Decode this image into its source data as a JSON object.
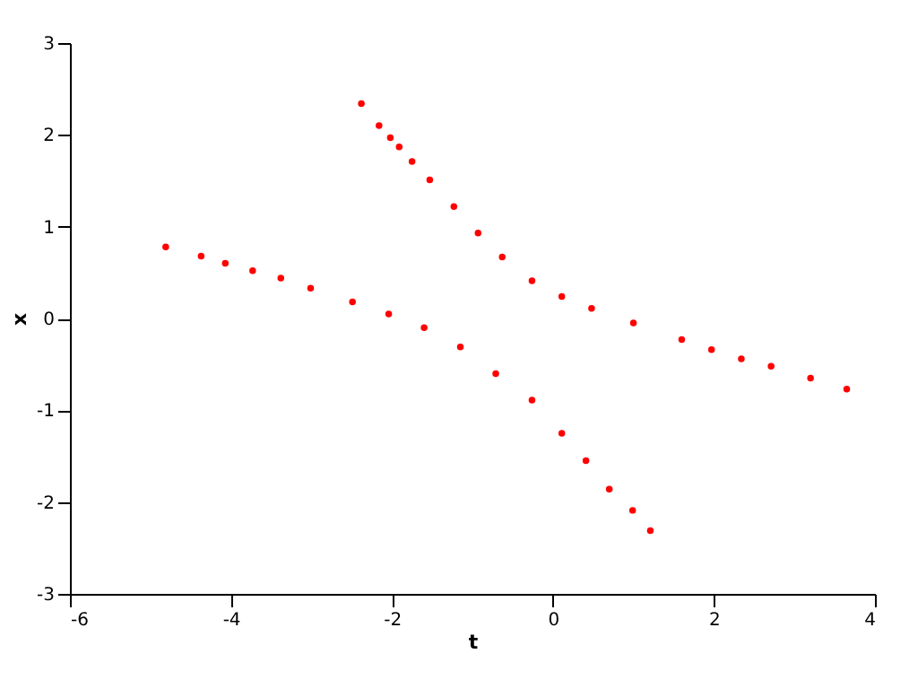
{
  "chart_data": {
    "type": "scatter",
    "xlabel": "t",
    "ylabel": "x",
    "xlim": [
      -6,
      4
    ],
    "ylim": [
      -3,
      3
    ],
    "xticks": [
      -6,
      -4,
      -2,
      0,
      2,
      4
    ],
    "yticks": [
      -3,
      -2,
      -1,
      0,
      1,
      2,
      3
    ],
    "grid": false,
    "legend": false,
    "marker": "circle",
    "series": [
      {
        "color": "#ff0000",
        "x": [
          -2.38,
          -2.16,
          -2.02,
          -1.91,
          -1.75,
          -1.53,
          -1.23,
          -0.93,
          -0.63,
          -0.26,
          0.11,
          0.48,
          1.0,
          1.6,
          1.97,
          2.34,
          2.71,
          3.2,
          3.65
        ],
        "values": [
          2.34,
          2.1,
          1.97,
          1.87,
          1.71,
          1.51,
          1.22,
          0.93,
          0.67,
          0.41,
          0.24,
          0.11,
          -0.05,
          -0.23,
          -0.34,
          -0.44,
          -0.52,
          -0.65,
          -0.77
        ]
      },
      {
        "color": "#ff0000",
        "x": [
          -4.81,
          -4.37,
          -4.07,
          -3.73,
          -3.38,
          -3.01,
          -2.49,
          -2.04,
          -1.6,
          -1.15,
          -0.71,
          -0.26,
          0.11,
          0.41,
          0.7,
          0.99,
          1.21
        ],
        "values": [
          0.78,
          0.68,
          0.6,
          0.52,
          0.44,
          0.33,
          0.18,
          0.05,
          -0.1,
          -0.31,
          -0.6,
          -0.89,
          -1.25,
          -1.55,
          -1.86,
          -2.09,
          -2.31
        ]
      }
    ]
  }
}
